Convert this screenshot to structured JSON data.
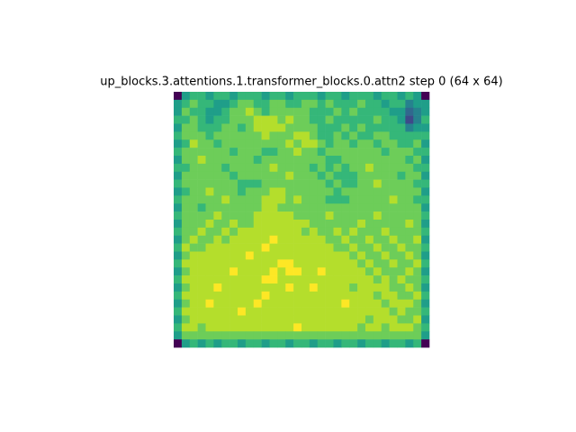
{
  "chart_data": {
    "type": "heatmap",
    "title": "up_blocks.3.attentions.1.transformer_blocks.0.attn2 step 0 (64 x 64)",
    "colormap": "viridis",
    "clim": [
      0,
      9
    ],
    "values": [
      [
        0,
        5,
        6,
        6,
        5,
        6,
        6,
        5,
        6,
        6,
        6,
        5,
        6,
        6,
        5,
        6,
        6,
        6,
        5,
        6,
        6,
        5,
        6,
        6,
        6,
        5,
        6,
        6,
        5,
        6,
        5,
        0
      ],
      [
        5,
        6,
        7,
        6,
        6,
        5,
        5,
        6,
        7,
        7,
        6,
        6,
        7,
        7,
        6,
        6,
        7,
        7,
        6,
        7,
        6,
        6,
        6,
        7,
        6,
        6,
        5,
        6,
        6,
        4,
        5,
        5
      ],
      [
        5,
        7,
        6,
        6,
        5,
        5,
        6,
        7,
        7,
        8,
        7,
        6,
        7,
        7,
        7,
        7,
        7,
        6,
        6,
        6,
        7,
        6,
        7,
        6,
        6,
        6,
        6,
        5,
        5,
        3,
        4,
        5
      ],
      [
        6,
        6,
        7,
        6,
        5,
        6,
        6,
        7,
        7,
        7,
        8,
        8,
        8,
        7,
        8,
        7,
        7,
        6,
        6,
        7,
        6,
        6,
        6,
        6,
        6,
        7,
        6,
        6,
        5,
        2,
        4,
        6
      ],
      [
        5,
        7,
        7,
        6,
        6,
        6,
        7,
        7,
        6,
        7,
        8,
        8,
        8,
        8,
        7,
        7,
        7,
        7,
        6,
        6,
        6,
        7,
        6,
        7,
        6,
        6,
        6,
        6,
        6,
        4,
        5,
        5
      ],
      [
        6,
        7,
        7,
        7,
        6,
        7,
        7,
        7,
        7,
        7,
        7,
        8,
        7,
        7,
        7,
        8,
        8,
        7,
        6,
        6,
        7,
        6,
        7,
        6,
        6,
        7,
        7,
        6,
        6,
        6,
        6,
        6
      ],
      [
        5,
        6,
        8,
        7,
        7,
        6,
        7,
        7,
        7,
        7,
        7,
        7,
        7,
        7,
        8,
        7,
        8,
        8,
        7,
        6,
        7,
        7,
        6,
        7,
        7,
        6,
        7,
        7,
        6,
        6,
        7,
        5
      ],
      [
        6,
        7,
        7,
        7,
        7,
        7,
        7,
        6,
        7,
        7,
        7,
        6,
        6,
        7,
        7,
        8,
        7,
        7,
        6,
        7,
        7,
        7,
        7,
        7,
        7,
        7,
        6,
        7,
        7,
        7,
        6,
        6
      ],
      [
        5,
        7,
        7,
        8,
        7,
        7,
        7,
        7,
        7,
        7,
        6,
        7,
        7,
        7,
        7,
        7,
        7,
        7,
        7,
        6,
        6,
        7,
        7,
        7,
        7,
        7,
        7,
        7,
        7,
        6,
        7,
        5
      ],
      [
        6,
        6,
        7,
        7,
        7,
        7,
        6,
        7,
        7,
        7,
        7,
        7,
        8,
        7,
        7,
        7,
        7,
        6,
        7,
        6,
        7,
        6,
        7,
        7,
        8,
        7,
        7,
        7,
        7,
        7,
        6,
        6
      ],
      [
        5,
        7,
        7,
        7,
        7,
        7,
        7,
        6,
        7,
        7,
        7,
        7,
        7,
        7,
        8,
        7,
        7,
        7,
        6,
        7,
        6,
        6,
        6,
        7,
        7,
        7,
        7,
        7,
        6,
        7,
        7,
        5
      ],
      [
        6,
        7,
        7,
        7,
        7,
        7,
        7,
        7,
        6,
        6,
        6,
        7,
        7,
        7,
        7,
        7,
        7,
        7,
        7,
        6,
        7,
        6,
        6,
        7,
        7,
        8,
        7,
        7,
        7,
        7,
        6,
        6
      ],
      [
        5,
        6,
        7,
        7,
        8,
        7,
        7,
        7,
        6,
        7,
        7,
        7,
        8,
        8,
        7,
        7,
        7,
        7,
        7,
        7,
        6,
        7,
        7,
        7,
        7,
        7,
        7,
        7,
        7,
        7,
        7,
        5
      ],
      [
        6,
        7,
        7,
        7,
        7,
        7,
        8,
        7,
        7,
        7,
        7,
        8,
        8,
        8,
        7,
        8,
        7,
        7,
        7,
        6,
        6,
        6,
        7,
        7,
        7,
        7,
        7,
        8,
        7,
        7,
        6,
        6
      ],
      [
        5,
        7,
        7,
        6,
        7,
        7,
        7,
        7,
        7,
        7,
        7,
        8,
        8,
        7,
        7,
        7,
        7,
        7,
        7,
        7,
        7,
        7,
        7,
        7,
        7,
        7,
        7,
        7,
        7,
        7,
        7,
        5
      ],
      [
        6,
        7,
        7,
        7,
        7,
        8,
        7,
        7,
        7,
        7,
        8,
        8,
        8,
        8,
        8,
        7,
        7,
        7,
        7,
        8,
        7,
        7,
        7,
        7,
        7,
        8,
        7,
        7,
        7,
        7,
        7,
        6
      ],
      [
        5,
        7,
        7,
        7,
        8,
        7,
        7,
        8,
        7,
        7,
        8,
        8,
        8,
        8,
        8,
        8,
        8,
        7,
        7,
        7,
        7,
        7,
        7,
        8,
        7,
        7,
        7,
        7,
        7,
        8,
        7,
        5
      ],
      [
        6,
        7,
        7,
        8,
        7,
        7,
        8,
        7,
        8,
        8,
        8,
        8,
        8,
        8,
        8,
        8,
        7,
        8,
        7,
        7,
        8,
        7,
        8,
        7,
        7,
        7,
        8,
        7,
        7,
        7,
        7,
        6
      ],
      [
        5,
        7,
        8,
        7,
        7,
        8,
        7,
        8,
        8,
        8,
        8,
        8,
        9,
        8,
        8,
        8,
        8,
        8,
        8,
        7,
        7,
        8,
        7,
        7,
        8,
        7,
        7,
        8,
        7,
        7,
        8,
        5
      ],
      [
        6,
        8,
        7,
        7,
        8,
        8,
        8,
        8,
        8,
        8,
        8,
        9,
        8,
        8,
        8,
        8,
        8,
        8,
        8,
        8,
        7,
        7,
        8,
        7,
        7,
        8,
        7,
        7,
        8,
        7,
        7,
        6
      ],
      [
        5,
        7,
        8,
        8,
        8,
        8,
        8,
        8,
        8,
        9,
        8,
        8,
        8,
        8,
        8,
        8,
        8,
        8,
        8,
        8,
        8,
        8,
        7,
        8,
        7,
        7,
        8,
        7,
        7,
        8,
        7,
        5
      ],
      [
        6,
        8,
        8,
        8,
        8,
        8,
        8,
        8,
        8,
        8,
        8,
        8,
        8,
        9,
        9,
        8,
        8,
        8,
        8,
        8,
        8,
        8,
        8,
        7,
        8,
        7,
        7,
        8,
        7,
        7,
        8,
        6
      ],
      [
        5,
        7,
        8,
        8,
        8,
        8,
        8,
        9,
        8,
        8,
        8,
        8,
        9,
        8,
        9,
        9,
        8,
        8,
        9,
        8,
        8,
        8,
        8,
        8,
        7,
        8,
        7,
        7,
        7,
        8,
        7,
        5
      ],
      [
        6,
        8,
        8,
        8,
        8,
        8,
        8,
        8,
        8,
        8,
        8,
        9,
        9,
        8,
        8,
        8,
        8,
        8,
        8,
        8,
        8,
        8,
        8,
        8,
        8,
        7,
        8,
        7,
        8,
        7,
        7,
        6
      ],
      [
        5,
        7,
        8,
        8,
        8,
        9,
        8,
        8,
        8,
        8,
        8,
        8,
        8,
        8,
        9,
        8,
        8,
        9,
        8,
        8,
        8,
        8,
        7,
        8,
        8,
        8,
        8,
        7,
        7,
        8,
        7,
        5
      ],
      [
        6,
        8,
        8,
        8,
        8,
        8,
        8,
        8,
        8,
        8,
        8,
        9,
        8,
        8,
        8,
        8,
        8,
        8,
        8,
        8,
        8,
        8,
        8,
        8,
        8,
        7,
        8,
        8,
        7,
        7,
        8,
        6
      ],
      [
        5,
        7,
        8,
        8,
        9,
        8,
        8,
        8,
        8,
        8,
        9,
        8,
        8,
        8,
        8,
        8,
        8,
        8,
        8,
        8,
        8,
        9,
        8,
        8,
        8,
        8,
        7,
        8,
        8,
        8,
        7,
        5
      ],
      [
        6,
        8,
        8,
        8,
        8,
        8,
        8,
        8,
        9,
        8,
        8,
        8,
        8,
        8,
        8,
        8,
        8,
        8,
        8,
        8,
        8,
        8,
        8,
        8,
        8,
        8,
        8,
        7,
        8,
        7,
        7,
        6
      ],
      [
        5,
        7,
        8,
        8,
        8,
        8,
        8,
        8,
        8,
        8,
        8,
        8,
        8,
        8,
        8,
        8,
        8,
        8,
        8,
        8,
        8,
        8,
        8,
        8,
        7,
        8,
        8,
        8,
        7,
        7,
        8,
        5
      ],
      [
        6,
        8,
        8,
        7,
        8,
        8,
        8,
        8,
        8,
        8,
        8,
        8,
        8,
        8,
        8,
        9,
        8,
        8,
        8,
        8,
        8,
        8,
        8,
        7,
        8,
        8,
        7,
        8,
        8,
        8,
        7,
        6
      ],
      [
        5,
        7,
        7,
        7,
        7,
        7,
        7,
        7,
        7,
        7,
        7,
        7,
        7,
        7,
        7,
        7,
        7,
        7,
        7,
        7,
        7,
        7,
        7,
        7,
        7,
        7,
        7,
        7,
        7,
        7,
        7,
        5
      ],
      [
        0,
        5,
        6,
        5,
        6,
        5,
        6,
        6,
        5,
        6,
        6,
        5,
        6,
        6,
        5,
        6,
        6,
        5,
        6,
        6,
        5,
        6,
        6,
        5,
        6,
        6,
        5,
        6,
        6,
        5,
        6,
        0
      ]
    ]
  }
}
